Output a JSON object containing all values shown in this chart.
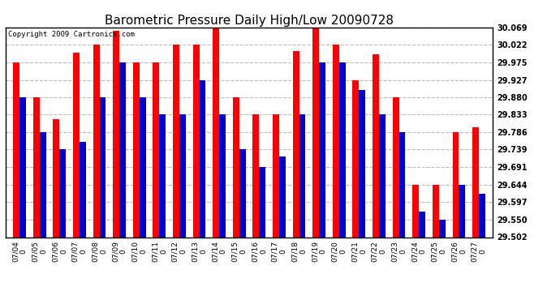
{
  "title": "Barometric Pressure Daily High/Low 20090728",
  "copyright": "Copyright 2009 Cartronics.com",
  "dates": [
    "07/04",
    "07/05",
    "07/06",
    "07/07",
    "07/08",
    "07/09",
    "07/10",
    "07/11",
    "07/12",
    "07/13",
    "07/14",
    "07/15",
    "07/16",
    "07/17",
    "07/18",
    "07/19",
    "07/20",
    "07/21",
    "07/22",
    "07/23",
    "07/24",
    "07/25",
    "07/26",
    "07/27"
  ],
  "high_values": [
    29.975,
    29.88,
    29.82,
    30.0,
    30.022,
    30.06,
    29.975,
    29.975,
    30.022,
    30.022,
    30.069,
    29.88,
    29.833,
    29.833,
    30.005,
    30.069,
    30.022,
    29.927,
    29.997,
    29.88,
    29.644,
    29.644,
    29.786,
    29.8
  ],
  "low_values": [
    29.88,
    29.786,
    29.739,
    29.76,
    29.88,
    29.975,
    29.88,
    29.833,
    29.833,
    29.927,
    29.833,
    29.739,
    29.691,
    29.719,
    29.833,
    29.975,
    29.975,
    29.9,
    29.833,
    29.786,
    29.571,
    29.55,
    29.644,
    29.619
  ],
  "bar_color_high": "#ff0000",
  "bar_color_low": "#0000cc",
  "bg_color": "#ffffff",
  "grid_color": "#bbbbbb",
  "yticks": [
    29.502,
    29.55,
    29.597,
    29.644,
    29.691,
    29.739,
    29.786,
    29.833,
    29.88,
    29.927,
    29.975,
    30.022,
    30.069
  ],
  "ylim_min": 29.502,
  "ylim_max": 30.069,
  "figwidth": 6.9,
  "figheight": 3.75,
  "dpi": 100
}
